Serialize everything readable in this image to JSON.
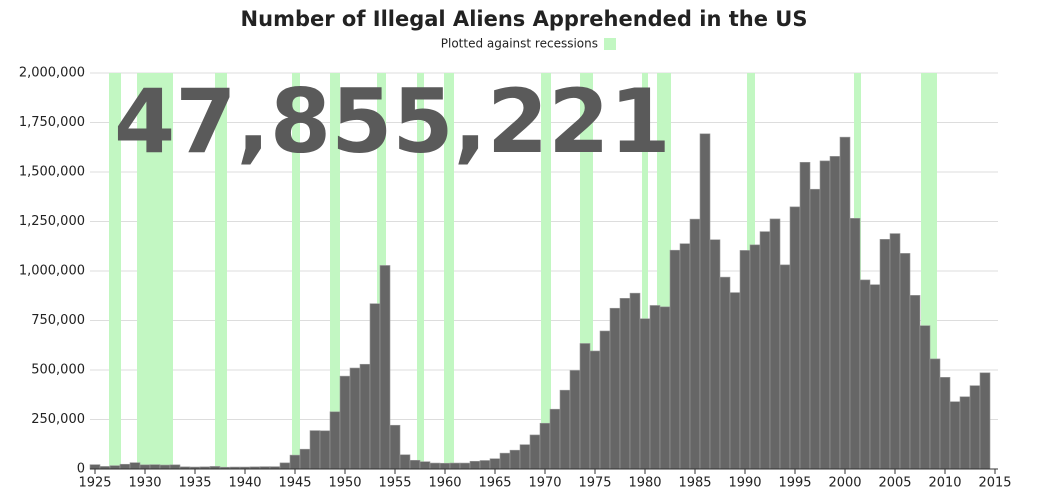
{
  "chart_data": {
    "type": "bar",
    "title": "Number of Illegal Aliens Apprehended in the US",
    "subtitle": "Plotted against recessions",
    "annotation": "47,855,221",
    "color": "#666666",
    "recession_color": "#c2f7c2",
    "grid": true,
    "x": [
      1925,
      1926,
      1927,
      1928,
      1929,
      1930,
      1931,
      1932,
      1933,
      1934,
      1935,
      1936,
      1937,
      1938,
      1939,
      1940,
      1941,
      1942,
      1943,
      1944,
      1945,
      1946,
      1947,
      1948,
      1949,
      1950,
      1951,
      1952,
      1953,
      1954,
      1955,
      1956,
      1957,
      1958,
      1959,
      1960,
      1961,
      1962,
      1963,
      1964,
      1965,
      1966,
      1967,
      1968,
      1969,
      1970,
      1971,
      1972,
      1973,
      1974,
      1975,
      1976,
      1977,
      1978,
      1979,
      1980,
      1981,
      1982,
      1983,
      1984,
      1985,
      1986,
      1987,
      1988,
      1989,
      1990,
      1991,
      1992,
      1993,
      1994,
      1995,
      1996,
      1997,
      1998,
      1999,
      2000,
      2001,
      2002,
      2003,
      2004,
      2005,
      2006,
      2007,
      2008,
      2009,
      2010,
      2011,
      2012,
      2013,
      2014
    ],
    "values": [
      22000,
      13000,
      17000,
      24000,
      32000,
      21000,
      22000,
      20000,
      21000,
      11000,
      10000,
      11000,
      13000,
      9000,
      10000,
      10000,
      11000,
      12000,
      12000,
      31000,
      70000,
      100000,
      194000,
      193000,
      289000,
      469000,
      510000,
      529000,
      835000,
      1028000,
      221000,
      72000,
      44000,
      37000,
      30000,
      29000,
      30000,
      30000,
      39000,
      43000,
      52000,
      80000,
      95000,
      123000,
      172000,
      231000,
      302000,
      398000,
      498000,
      634000,
      596000,
      697000,
      812000,
      862000,
      888000,
      759000,
      826000,
      819000,
      1105000,
      1138000,
      1262000,
      1693000,
      1158000,
      969000,
      891000,
      1104000,
      1132000,
      1199000,
      1263000,
      1031000,
      1324000,
      1549000,
      1413000,
      1556000,
      1579000,
      1676000,
      1266000,
      955000,
      931000,
      1160000,
      1189000,
      1089000,
      877000,
      724000,
      556000,
      463000,
      340000,
      365000,
      421000,
      486000
    ],
    "recessions": [
      [
        1926.4,
        1927.6
      ],
      [
        1929.2,
        1932.8
      ],
      [
        1937.0,
        1938.2
      ],
      [
        1944.7,
        1945.5
      ],
      [
        1948.5,
        1949.5
      ],
      [
        1953.2,
        1954.1
      ],
      [
        1957.2,
        1957.9
      ],
      [
        1959.9,
        1960.9
      ],
      [
        1969.6,
        1970.6
      ],
      [
        1973.5,
        1974.8
      ],
      [
        1979.7,
        1980.3
      ],
      [
        1981.2,
        1982.6
      ],
      [
        1990.2,
        1991.0
      ],
      [
        2000.9,
        2001.6
      ],
      [
        2007.6,
        2009.2
      ]
    ],
    "xlim": [
      1924.5,
      2015.3
    ],
    "xticks": [
      1925,
      1930,
      1935,
      1940,
      1945,
      1950,
      1955,
      1960,
      1965,
      1970,
      1975,
      1980,
      1985,
      1990,
      1995,
      2000,
      2005,
      2010,
      2015
    ],
    "ylim": [
      0,
      2000000
    ],
    "yticks": [
      0,
      {
        "value": 250000,
        "label": "250,000"
      },
      {
        "value": 500000,
        "label": "500,000"
      },
      {
        "value": 750000,
        "label": "750,000"
      },
      {
        "value": 1000000,
        "label": "1,000,000"
      },
      {
        "value": 1250000,
        "label": "1,250,000"
      },
      {
        "value": 1500000,
        "label": "1,500,000"
      },
      {
        "value": 1750000,
        "label": "1,750,000"
      },
      {
        "value": 2000000,
        "label": "2,000,000"
      }
    ]
  }
}
